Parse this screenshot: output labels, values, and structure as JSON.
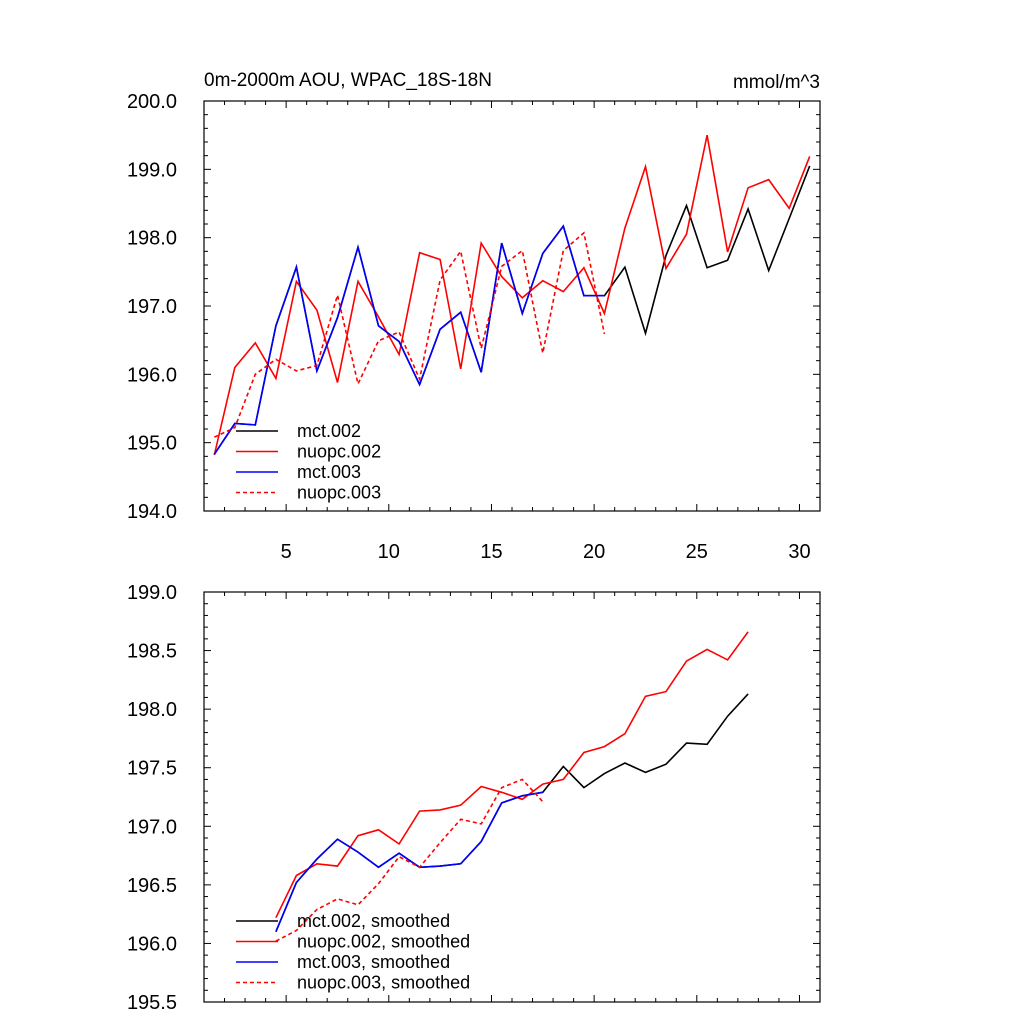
{
  "figure": {
    "title_left": "0m-2000m AOU, WPAC_18S-18N",
    "title_right": "mmol/m^3"
  },
  "colors": {
    "mct.002": "#000000",
    "nuopc.002": "#ff0000",
    "mct.003": "#0000ff",
    "nuopc.003": "#ff0000"
  },
  "chart_data": [
    {
      "type": "line",
      "title": "0m-2000m AOU, WPAC_18S-18N",
      "units": "mmol/m^3",
      "xlabel": "",
      "ylabel": "",
      "xlim": [
        1,
        31
      ],
      "ylim": [
        194.0,
        200.0
      ],
      "x_ticks": [
        5,
        10,
        15,
        20,
        25,
        30
      ],
      "x_tick_labels": [
        "5",
        "10",
        "15",
        "20",
        "25",
        "30"
      ],
      "y_ticks": [
        194.0,
        195.0,
        196.0,
        197.0,
        198.0,
        199.0,
        200.0
      ],
      "y_tick_labels": [
        "194.0",
        "195.0",
        "196.0",
        "197.0",
        "198.0",
        "199.0",
        "200.0"
      ],
      "legend_position": "bottom-left",
      "series": [
        {
          "name": "mct.002",
          "style": "solid",
          "x": [
            1.5,
            2.5,
            3.5,
            4.5,
            5.5,
            6.5,
            7.5,
            8.5,
            9.5,
            10.5,
            11.5,
            12.5,
            13.5,
            14.5,
            15.5,
            16.5,
            17.5,
            18.5,
            19.5,
            20.5,
            21.5,
            22.5,
            23.5,
            24.5,
            25.5,
            26.5,
            27.5,
            28.5,
            29.5,
            30.5
          ],
          "values": [
            194.83,
            195.28,
            195.26,
            196.71,
            197.57,
            196.05,
            196.83,
            197.86,
            196.71,
            196.48,
            195.85,
            196.66,
            196.91,
            196.03,
            197.92,
            196.89,
            197.77,
            198.17,
            197.15,
            197.15,
            197.57,
            196.6,
            197.74,
            198.47,
            197.56,
            197.67,
            198.42,
            197.52,
            198.28,
            199.05
          ]
        },
        {
          "name": "nuopc.002",
          "style": "solid",
          "x": [
            1.5,
            2.5,
            3.5,
            4.5,
            5.5,
            6.5,
            7.5,
            8.5,
            9.5,
            10.5,
            11.5,
            12.5,
            13.5,
            14.5,
            15.5,
            16.5,
            17.5,
            18.5,
            19.5,
            20.5,
            21.5,
            22.5,
            23.5,
            24.5,
            25.5,
            26.5,
            27.5,
            28.5,
            29.5,
            30.5
          ],
          "values": [
            194.82,
            196.1,
            196.46,
            195.94,
            197.36,
            196.94,
            195.88,
            197.36,
            196.84,
            196.29,
            197.78,
            197.68,
            196.08,
            197.92,
            197.43,
            197.12,
            197.37,
            197.21,
            197.56,
            196.89,
            198.14,
            199.04,
            197.55,
            198.05,
            199.5,
            197.79,
            198.73,
            198.85,
            198.43,
            199.19
          ]
        },
        {
          "name": "mct.003",
          "style": "solid",
          "x": [
            1.5,
            2.5,
            3.5,
            4.5,
            5.5,
            6.5,
            7.5,
            8.5,
            9.5,
            10.5,
            11.5,
            12.5,
            13.5,
            14.5,
            15.5,
            16.5,
            17.5,
            18.5,
            19.5,
            20.5
          ],
          "values": [
            194.83,
            195.28,
            195.26,
            196.71,
            197.57,
            196.05,
            196.83,
            197.86,
            196.71,
            196.48,
            195.85,
            196.66,
            196.91,
            196.03,
            197.92,
            196.89,
            197.77,
            198.17,
            197.15,
            197.15
          ]
        },
        {
          "name": "nuopc.003",
          "style": "dashed",
          "x": [
            1.5,
            2.5,
            3.5,
            4.5,
            5.5,
            6.5,
            7.5,
            8.5,
            9.5,
            10.5,
            11.5,
            12.5,
            13.5,
            14.5,
            15.5,
            16.5,
            17.5,
            18.5,
            19.5,
            20.5
          ],
          "values": [
            195.08,
            195.22,
            196.0,
            196.22,
            196.05,
            196.13,
            197.16,
            195.86,
            196.49,
            196.62,
            195.93,
            197.38,
            197.8,
            196.38,
            197.58,
            197.81,
            196.31,
            197.81,
            198.07,
            196.59
          ]
        }
      ]
    },
    {
      "type": "line",
      "title": "",
      "xlabel": "",
      "ylabel": "",
      "xlim": [
        1,
        31
      ],
      "ylim": [
        195.5,
        199.0
      ],
      "x_ticks": [
        5,
        10,
        15,
        20,
        25,
        30
      ],
      "y_ticks": [
        195.5,
        196.0,
        196.5,
        197.0,
        197.5,
        198.0,
        198.5,
        199.0
      ],
      "y_tick_labels": [
        "195.5",
        "196.0",
        "196.5",
        "197.0",
        "197.5",
        "198.0",
        "198.5",
        "199.0"
      ],
      "legend_position": "bottom-left",
      "series": [
        {
          "name": "mct.002, smoothed",
          "style": "solid",
          "x": [
            4.5,
            5.5,
            6.5,
            7.5,
            8.5,
            9.5,
            10.5,
            11.5,
            12.5,
            13.5,
            14.5,
            15.5,
            16.5,
            17.5,
            18.5,
            19.5,
            20.5,
            21.5,
            22.5,
            23.5,
            24.5,
            25.5,
            26.5,
            27.5
          ],
          "values": [
            196.1,
            196.52,
            196.72,
            196.89,
            196.78,
            196.65,
            196.77,
            196.65,
            196.66,
            196.68,
            196.87,
            197.2,
            197.26,
            197.29,
            197.51,
            197.33,
            197.45,
            197.54,
            197.46,
            197.53,
            197.71,
            197.7,
            197.94,
            198.13
          ]
        },
        {
          "name": "nuopc.002, smoothed",
          "style": "solid",
          "x": [
            4.5,
            5.5,
            6.5,
            7.5,
            8.5,
            9.5,
            10.5,
            11.5,
            12.5,
            13.5,
            14.5,
            15.5,
            16.5,
            17.5,
            18.5,
            19.5,
            20.5,
            21.5,
            22.5,
            23.5,
            24.5,
            25.5,
            26.5,
            27.5
          ],
          "values": [
            196.22,
            196.58,
            196.68,
            196.66,
            196.92,
            196.97,
            196.85,
            197.13,
            197.14,
            197.18,
            197.34,
            197.29,
            197.23,
            197.36,
            197.4,
            197.63,
            197.68,
            197.79,
            198.11,
            198.15,
            198.41,
            198.51,
            198.42,
            198.66
          ]
        },
        {
          "name": "mct.003, smoothed",
          "style": "solid",
          "x": [
            4.5,
            5.5,
            6.5,
            7.5,
            8.5,
            9.5,
            10.5,
            11.5,
            12.5,
            13.5,
            14.5,
            15.5,
            16.5,
            17.5
          ],
          "values": [
            196.1,
            196.52,
            196.72,
            196.89,
            196.78,
            196.65,
            196.77,
            196.65,
            196.66,
            196.68,
            196.87,
            197.2,
            197.26,
            197.29
          ]
        },
        {
          "name": "nuopc.003, smoothed",
          "style": "dashed",
          "x": [
            4.5,
            5.5,
            6.5,
            7.5,
            8.5,
            9.5,
            10.5,
            11.5,
            12.5,
            13.5,
            14.5,
            15.5,
            16.5,
            17.5
          ],
          "values": [
            196.02,
            196.11,
            196.29,
            196.38,
            196.33,
            196.51,
            196.74,
            196.65,
            196.86,
            197.06,
            197.02,
            197.33,
            197.4,
            197.21
          ]
        }
      ]
    }
  ]
}
